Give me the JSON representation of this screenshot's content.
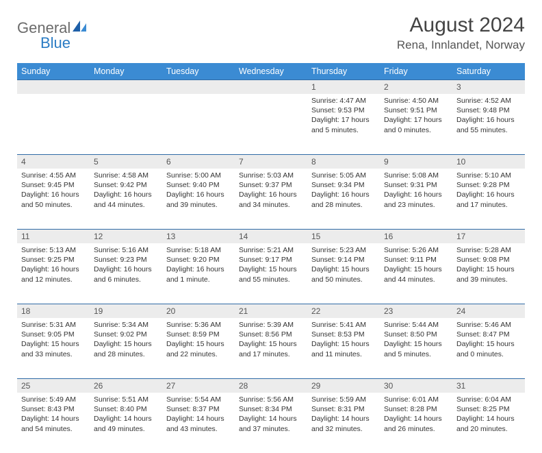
{
  "logo": {
    "word1": "General",
    "word2": "Blue"
  },
  "title": "August 2024",
  "location": "Rena, Innlandet, Norway",
  "day_headers": [
    "Sunday",
    "Monday",
    "Tuesday",
    "Wednesday",
    "Thursday",
    "Friday",
    "Saturday"
  ],
  "colors": {
    "header_bg": "#3b8bd3",
    "header_text": "#ffffff",
    "daynum_bg": "#ececec",
    "border": "#2f6aa6",
    "logo_gray": "#6b6b6b",
    "logo_blue": "#2b7cc4"
  },
  "weeks": [
    [
      null,
      null,
      null,
      null,
      {
        "n": "1",
        "sr": "4:47 AM",
        "ss": "9:53 PM",
        "dl": "17 hours and 5 minutes."
      },
      {
        "n": "2",
        "sr": "4:50 AM",
        "ss": "9:51 PM",
        "dl": "17 hours and 0 minutes."
      },
      {
        "n": "3",
        "sr": "4:52 AM",
        "ss": "9:48 PM",
        "dl": "16 hours and 55 minutes."
      }
    ],
    [
      {
        "n": "4",
        "sr": "4:55 AM",
        "ss": "9:45 PM",
        "dl": "16 hours and 50 minutes."
      },
      {
        "n": "5",
        "sr": "4:58 AM",
        "ss": "9:42 PM",
        "dl": "16 hours and 44 minutes."
      },
      {
        "n": "6",
        "sr": "5:00 AM",
        "ss": "9:40 PM",
        "dl": "16 hours and 39 minutes."
      },
      {
        "n": "7",
        "sr": "5:03 AM",
        "ss": "9:37 PM",
        "dl": "16 hours and 34 minutes."
      },
      {
        "n": "8",
        "sr": "5:05 AM",
        "ss": "9:34 PM",
        "dl": "16 hours and 28 minutes."
      },
      {
        "n": "9",
        "sr": "5:08 AM",
        "ss": "9:31 PM",
        "dl": "16 hours and 23 minutes."
      },
      {
        "n": "10",
        "sr": "5:10 AM",
        "ss": "9:28 PM",
        "dl": "16 hours and 17 minutes."
      }
    ],
    [
      {
        "n": "11",
        "sr": "5:13 AM",
        "ss": "9:25 PM",
        "dl": "16 hours and 12 minutes."
      },
      {
        "n": "12",
        "sr": "5:16 AM",
        "ss": "9:23 PM",
        "dl": "16 hours and 6 minutes."
      },
      {
        "n": "13",
        "sr": "5:18 AM",
        "ss": "9:20 PM",
        "dl": "16 hours and 1 minute."
      },
      {
        "n": "14",
        "sr": "5:21 AM",
        "ss": "9:17 PM",
        "dl": "15 hours and 55 minutes."
      },
      {
        "n": "15",
        "sr": "5:23 AM",
        "ss": "9:14 PM",
        "dl": "15 hours and 50 minutes."
      },
      {
        "n": "16",
        "sr": "5:26 AM",
        "ss": "9:11 PM",
        "dl": "15 hours and 44 minutes."
      },
      {
        "n": "17",
        "sr": "5:28 AM",
        "ss": "9:08 PM",
        "dl": "15 hours and 39 minutes."
      }
    ],
    [
      {
        "n": "18",
        "sr": "5:31 AM",
        "ss": "9:05 PM",
        "dl": "15 hours and 33 minutes."
      },
      {
        "n": "19",
        "sr": "5:34 AM",
        "ss": "9:02 PM",
        "dl": "15 hours and 28 minutes."
      },
      {
        "n": "20",
        "sr": "5:36 AM",
        "ss": "8:59 PM",
        "dl": "15 hours and 22 minutes."
      },
      {
        "n": "21",
        "sr": "5:39 AM",
        "ss": "8:56 PM",
        "dl": "15 hours and 17 minutes."
      },
      {
        "n": "22",
        "sr": "5:41 AM",
        "ss": "8:53 PM",
        "dl": "15 hours and 11 minutes."
      },
      {
        "n": "23",
        "sr": "5:44 AM",
        "ss": "8:50 PM",
        "dl": "15 hours and 5 minutes."
      },
      {
        "n": "24",
        "sr": "5:46 AM",
        "ss": "8:47 PM",
        "dl": "15 hours and 0 minutes."
      }
    ],
    [
      {
        "n": "25",
        "sr": "5:49 AM",
        "ss": "8:43 PM",
        "dl": "14 hours and 54 minutes."
      },
      {
        "n": "26",
        "sr": "5:51 AM",
        "ss": "8:40 PM",
        "dl": "14 hours and 49 minutes."
      },
      {
        "n": "27",
        "sr": "5:54 AM",
        "ss": "8:37 PM",
        "dl": "14 hours and 43 minutes."
      },
      {
        "n": "28",
        "sr": "5:56 AM",
        "ss": "8:34 PM",
        "dl": "14 hours and 37 minutes."
      },
      {
        "n": "29",
        "sr": "5:59 AM",
        "ss": "8:31 PM",
        "dl": "14 hours and 32 minutes."
      },
      {
        "n": "30",
        "sr": "6:01 AM",
        "ss": "8:28 PM",
        "dl": "14 hours and 26 minutes."
      },
      {
        "n": "31",
        "sr": "6:04 AM",
        "ss": "8:25 PM",
        "dl": "14 hours and 20 minutes."
      }
    ]
  ],
  "labels": {
    "sunrise": "Sunrise:",
    "sunset": "Sunset:",
    "daylight": "Daylight:"
  }
}
